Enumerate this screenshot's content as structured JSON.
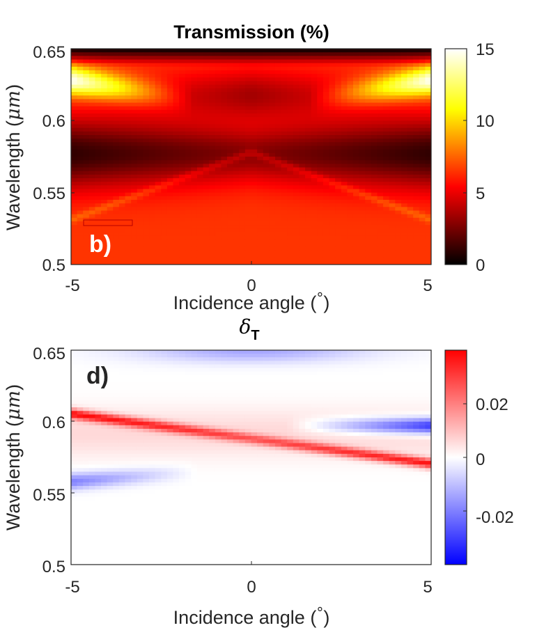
{
  "chart_data": [
    {
      "type": "heatmap",
      "title": "Transmission (%)",
      "panel_label": "b)",
      "xlabel": "Incidence angle (°)",
      "xlabel_prefix": "Incidence angle (",
      "xlabel_unit": "°",
      "xlabel_suffix": ")",
      "ylabel": "Wavelength (μm)",
      "ylabel_prefix": "Wavelength (",
      "ylabel_unit": "μm",
      "ylabel_suffix": ")",
      "xlim": [
        -5,
        5
      ],
      "ylim": [
        0.5,
        0.65
      ],
      "xticks": [
        -5,
        0,
        5
      ],
      "xtick_labels": [
        "-5",
        "0",
        "5"
      ],
      "yticks": [
        0.5,
        0.55,
        0.6,
        0.65
      ],
      "ytick_labels": [
        "0.5",
        "0.55",
        "0.6",
        "0.65"
      ],
      "colormap": "hot",
      "clim": [
        0,
        15
      ],
      "colorbar_ticks": [
        0,
        5,
        10,
        15
      ],
      "colorbar_tick_labels": [
        "0",
        "5",
        "10",
        "15"
      ],
      "features": [
        {
          "kind": "background",
          "wavelength_range": [
            0.5,
            0.53
          ],
          "value": 6.5
        },
        {
          "kind": "dip_minimum",
          "wavelength": 0.575,
          "angle": -5,
          "value": 0.3
        },
        {
          "kind": "dip_minimum",
          "wavelength": 0.575,
          "angle": 0,
          "value": 4.2
        },
        {
          "kind": "band_maximum",
          "wavelength": 0.632,
          "angle": -5,
          "value": 14.5
        },
        {
          "kind": "band_maximum",
          "wavelength": 0.632,
          "angle": 5,
          "value": 14.5
        },
        {
          "kind": "mode_line",
          "wavelength_at_edge": 0.531,
          "wavelength_at_center": 0.578,
          "value": 7.5
        }
      ]
    },
    {
      "type": "heatmap",
      "title_symbol": "δ",
      "title_subscript": "T",
      "panel_label": "d)",
      "xlabel": "Incidence angle (°)",
      "xlabel_prefix": "Incidence angle (",
      "xlabel_unit": "°",
      "xlabel_suffix": ")",
      "ylabel": "Wavelength (μm)",
      "ylabel_prefix": "Wavelength (",
      "ylabel_unit": "μm",
      "ylabel_suffix": ")",
      "xlim": [
        -5,
        5
      ],
      "ylim": [
        0.5,
        0.65
      ],
      "xticks": [
        -5,
        0,
        5
      ],
      "xtick_labels": [
        "-5",
        "0",
        "5"
      ],
      "yticks": [
        0.5,
        0.55,
        0.6,
        0.65
      ],
      "ytick_labels": [
        "0.5",
        "0.55",
        "0.6",
        "0.65"
      ],
      "colormap": "blue-white-red",
      "clim": [
        -0.04,
        0.04
      ],
      "colorbar_ticks": [
        -0.02,
        0,
        0.02
      ],
      "colorbar_tick_labels": [
        "-0.02",
        "0",
        "0.02"
      ],
      "features": [
        {
          "kind": "positive_line",
          "wavelength_at_left": 0.605,
          "wavelength_at_right": 0.57,
          "value": 0.035
        },
        {
          "kind": "negative_region",
          "wavelength": 0.597,
          "angle_range": [
            1.5,
            5
          ],
          "value": -0.035
        },
        {
          "kind": "negative_region",
          "wavelength": 0.568,
          "angle_range": [
            -5,
            -2
          ],
          "value": -0.02
        },
        {
          "kind": "negative_region",
          "wavelength": 0.65,
          "angle_range": [
            -2,
            2
          ],
          "value": -0.012
        }
      ]
    }
  ]
}
